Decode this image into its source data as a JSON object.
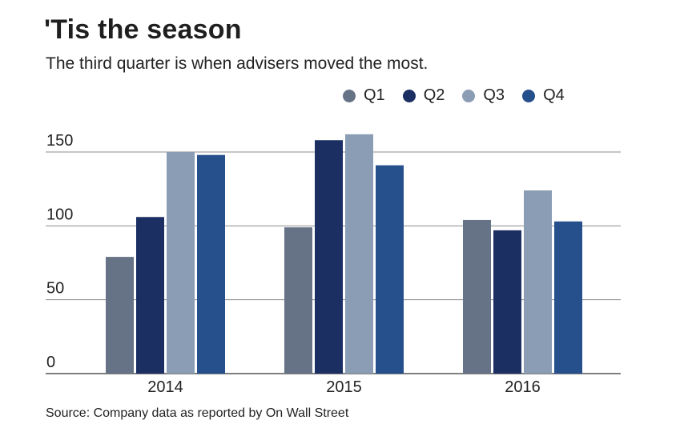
{
  "title": "'Tis the season",
  "subtitle": "The third quarter is when advisers moved the most.",
  "source": "Source: Company data as reported by On Wall Street",
  "colors": {
    "Q1": "#667386",
    "Q2": "#1b2f63",
    "Q3": "#8a9db4",
    "Q4": "#25508c",
    "gridline": "#8c8c8c",
    "axis": "#555555"
  },
  "legend": [
    "Q1",
    "Q2",
    "Q3",
    "Q4"
  ],
  "chart_data": {
    "type": "bar",
    "title": "'Tis the season",
    "subtitle": "The third quarter is when advisers moved the most.",
    "xlabel": "",
    "ylabel": "",
    "categories": [
      "2014",
      "2015",
      "2016"
    ],
    "series": [
      {
        "name": "Q1",
        "values": [
          79,
          99,
          104
        ]
      },
      {
        "name": "Q2",
        "values": [
          106,
          158,
          97
        ]
      },
      {
        "name": "Q3",
        "values": [
          150,
          162,
          124
        ]
      },
      {
        "name": "Q4",
        "values": [
          148,
          141,
          103
        ]
      }
    ],
    "ylim": [
      0,
      150
    ],
    "yticks": [
      0,
      50,
      100,
      150
    ],
    "grid": true,
    "legend_position": "top-right"
  }
}
